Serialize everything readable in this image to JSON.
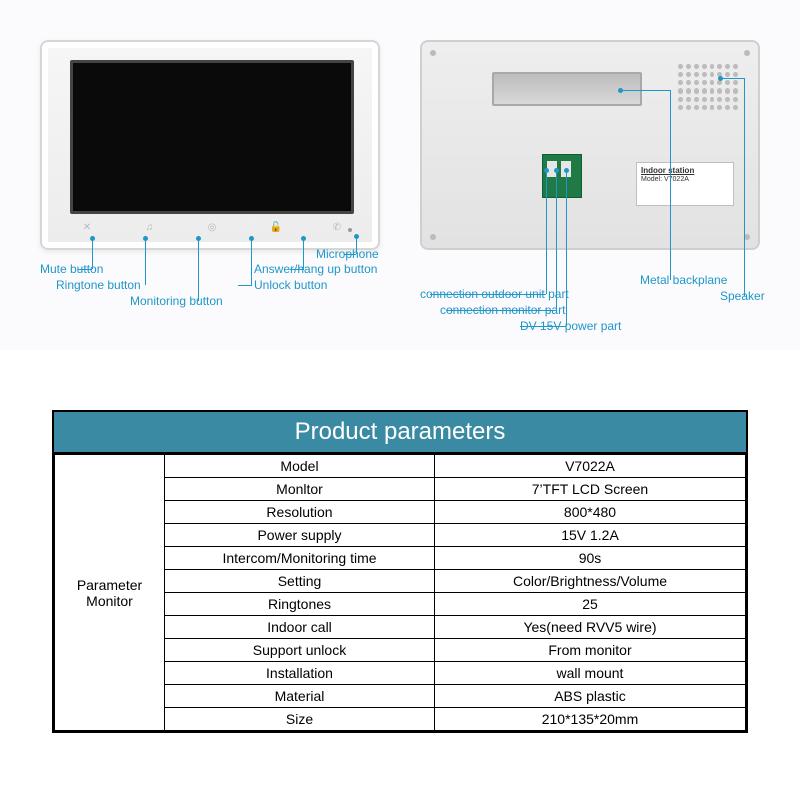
{
  "colors": {
    "callout": "#2196c9",
    "table_header_bg": "#3b8aa3",
    "table_header_fg": "#ffffff",
    "border": "#000000",
    "panel_bg": "#fbfbfd",
    "device_body": "#ececec",
    "screen": "#0a0a0a",
    "pcb": "#1f7a46"
  },
  "front": {
    "labels": {
      "mute": "Mute button",
      "ringtone": "Ringtone button",
      "monitoring": "Monitoring button",
      "unlock": "Unlock button",
      "answer": "Answer/hang up button",
      "microphone": "Microphone"
    }
  },
  "back": {
    "plate": {
      "title": "Indoor station",
      "model_label": "Model",
      "model_value": "V7022A"
    },
    "labels": {
      "outdoor": "connection outdoor unit part",
      "monitor": "connection monitor part",
      "power": "DV 15V power part",
      "backplane": "Metal backplane",
      "speaker": "Speaker"
    }
  },
  "table": {
    "title": "Product parameters",
    "rowhead": "Parameter Monitor",
    "rows": [
      {
        "k": "Model",
        "v": "V7022A"
      },
      {
        "k": "Monltor",
        "v": "7’TFT LCD Screen"
      },
      {
        "k": "Resolution",
        "v": "800*480"
      },
      {
        "k": "Power supply",
        "v": "15V  1.2A"
      },
      {
        "k": "Intercom/Monitoring time",
        "v": "90s"
      },
      {
        "k": "Setting",
        "v": "Color/Brightness/Volume"
      },
      {
        "k": "Ringtones",
        "v": "25"
      },
      {
        "k": "Indoor call",
        "v": "Yes(need RVV5 wire)"
      },
      {
        "k": "Support unlock",
        "v": "From monitor"
      },
      {
        "k": "Installation",
        "v": "wall mount"
      },
      {
        "k": "Material",
        "v": "ABS plastic"
      },
      {
        "k": "Size",
        "v": "210*135*20mm"
      }
    ]
  }
}
